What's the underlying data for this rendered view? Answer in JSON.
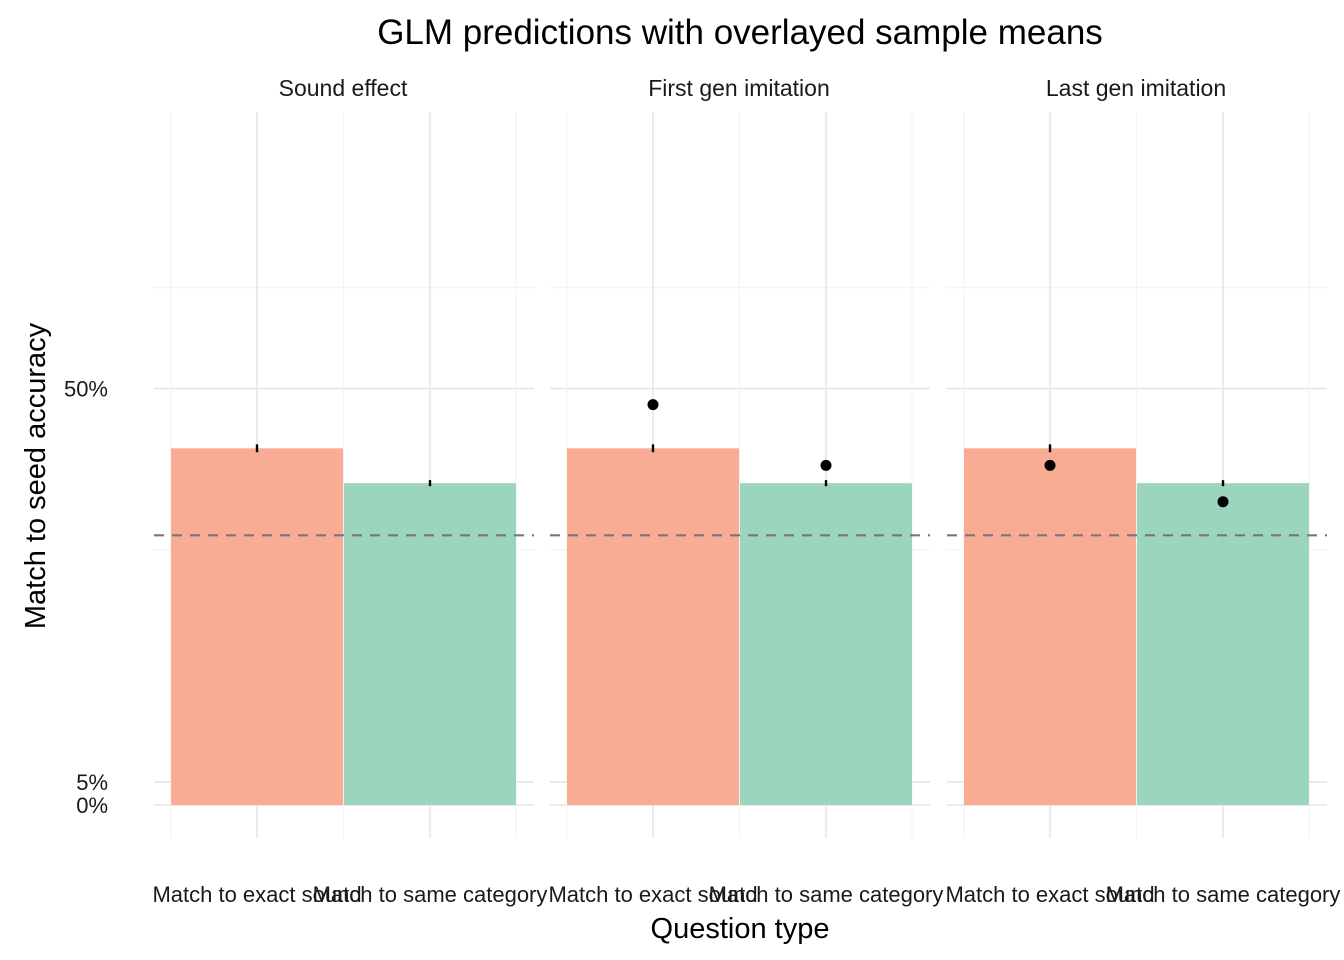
{
  "chart_data": {
    "type": "bar",
    "title": "GLM predictions with overlayed sample means",
    "xlabel": "Question type",
    "ylabel": "Match to seed accuracy",
    "y_scale": "logit",
    "y_ticks": [
      {
        "value": 0,
        "label": "0%"
      },
      {
        "value": 0.05,
        "label": "5%"
      },
      {
        "value": 0.5,
        "label": "50%"
      }
    ],
    "y_minor_ticks": [
      0.23,
      0.68
    ],
    "reference_line": {
      "value": 0.25,
      "style": "dashed"
    },
    "grid": true,
    "legend": "none",
    "categories": [
      "Match to exact sound",
      "Match to same category"
    ],
    "colors": {
      "Match to exact sound": "#f9a88e",
      "Match to same category": "#96d3bb"
    },
    "panels": [
      {
        "name": "Sound effect",
        "bars": [
          {
            "category": "Match to exact sound",
            "value": 0.39,
            "ci": [
              0.383,
              0.397
            ]
          },
          {
            "category": "Match to same category",
            "value": 0.33,
            "ci": [
              0.325,
              0.335
            ]
          }
        ],
        "sample_means": []
      },
      {
        "name": "First gen imitation",
        "bars": [
          {
            "category": "Match to exact sound",
            "value": 0.39,
            "ci": [
              0.383,
              0.397
            ]
          },
          {
            "category": "Match to same category",
            "value": 0.33,
            "ci": [
              0.325,
              0.335
            ]
          }
        ],
        "sample_means": [
          {
            "category": "Match to exact sound",
            "value": 0.47
          },
          {
            "category": "Match to same category",
            "value": 0.36
          }
        ]
      },
      {
        "name": "Last gen imitation",
        "bars": [
          {
            "category": "Match to exact sound",
            "value": 0.39,
            "ci": [
              0.383,
              0.397
            ]
          },
          {
            "category": "Match to same category",
            "value": 0.33,
            "ci": [
              0.325,
              0.335
            ]
          }
        ],
        "sample_means": [
          {
            "category": "Match to exact sound",
            "value": 0.36
          },
          {
            "category": "Match to same category",
            "value": 0.3
          }
        ]
      }
    ]
  }
}
